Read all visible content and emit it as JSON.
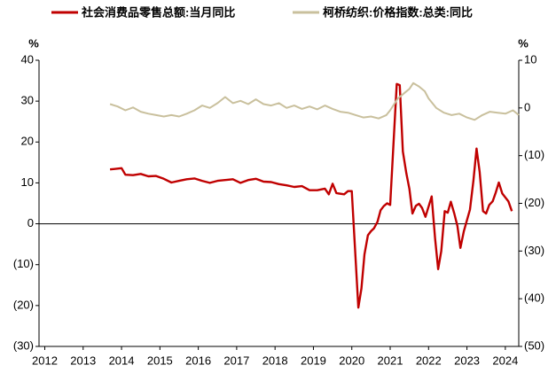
{
  "chart_data": {
    "type": "line",
    "y_label": "%",
    "y2_label": "%",
    "xlim": [
      2011.85,
      2024.35
    ],
    "xticks": [
      2012,
      2013,
      2014,
      2015,
      2016,
      2017,
      2018,
      2019,
      2020,
      2021,
      2022,
      2023,
      2024
    ],
    "ylim": [
      -30,
      40
    ],
    "yticks": [
      40,
      30,
      20,
      10,
      0,
      {
        "value": -10,
        "label": "(10)"
      },
      {
        "value": -20,
        "label": "(20)"
      },
      {
        "value": -30,
        "label": "(30)"
      }
    ],
    "y2lim": [
      -50,
      10
    ],
    "y2ticks": [
      10,
      0,
      {
        "value": -10,
        "label": "(10)"
      },
      {
        "value": -20,
        "label": "(20)"
      },
      {
        "value": -30,
        "label": "(30)"
      },
      {
        "value": -40,
        "label": "(40)"
      },
      {
        "value": -50,
        "label": "(50)"
      }
    ],
    "grid": false,
    "legend": "top",
    "series": [
      {
        "name": "社会消费品零售总额:当月同比",
        "color": "#c00000",
        "axis": "y",
        "x": [
          2013.7,
          2013.9,
          2014.0,
          2014.1,
          2014.3,
          2014.5,
          2014.7,
          2014.9,
          2015.1,
          2015.3,
          2015.5,
          2015.7,
          2015.9,
          2016.1,
          2016.3,
          2016.5,
          2016.7,
          2016.9,
          2017.1,
          2017.3,
          2017.5,
          2017.7,
          2017.9,
          2018.1,
          2018.3,
          2018.5,
          2018.7,
          2018.9,
          2019.1,
          2019.3,
          2019.4,
          2019.5,
          2019.6,
          2019.8,
          2019.9,
          2020.0,
          2020.17,
          2020.25,
          2020.33,
          2020.42,
          2020.5,
          2020.58,
          2020.67,
          2020.75,
          2020.83,
          2020.92,
          2021.0,
          2021.17,
          2021.25,
          2021.33,
          2021.42,
          2021.5,
          2021.58,
          2021.67,
          2021.75,
          2021.83,
          2021.92,
          2022.08,
          2022.17,
          2022.25,
          2022.33,
          2022.42,
          2022.5,
          2022.58,
          2022.67,
          2022.75,
          2022.83,
          2022.92,
          2023.08,
          2023.17,
          2023.25,
          2023.33,
          2023.42,
          2023.5,
          2023.58,
          2023.67,
          2023.75,
          2023.83,
          2023.92,
          2024.08,
          2024.17
        ],
        "values": [
          13.3,
          13.5,
          13.6,
          12.0,
          11.9,
          12.2,
          11.6,
          11.7,
          11.0,
          10.1,
          10.5,
          10.9,
          11.1,
          10.5,
          10.0,
          10.5,
          10.7,
          10.9,
          10.0,
          10.7,
          11.0,
          10.3,
          10.2,
          9.7,
          9.4,
          9.0,
          9.2,
          8.2,
          8.2,
          8.6,
          7.2,
          9.8,
          7.5,
          7.2,
          8.0,
          8.0,
          -20.5,
          -15.8,
          -7.5,
          -2.8,
          -1.8,
          -1.1,
          0.5,
          3.3,
          4.3,
          5.0,
          4.6,
          34.2,
          33.9,
          17.7,
          12.4,
          8.5,
          2.5,
          4.4,
          4.9,
          3.9,
          1.7,
          6.7,
          -3.5,
          -11.1,
          -6.7,
          3.1,
          2.7,
          5.4,
          2.5,
          -0.5,
          -5.9,
          -1.8,
          3.5,
          10.6,
          18.4,
          12.7,
          3.1,
          2.5,
          4.6,
          5.5,
          7.6,
          10.1,
          7.4,
          5.5,
          3.1
        ]
      },
      {
        "name": "柯桥纺织:价格指数:总类:同比",
        "color": "#c9c09d",
        "axis": "y2",
        "x": [
          2013.7,
          2013.9,
          2014.1,
          2014.3,
          2014.5,
          2014.7,
          2014.9,
          2015.1,
          2015.3,
          2015.5,
          2015.7,
          2015.9,
          2016.1,
          2016.3,
          2016.5,
          2016.7,
          2016.9,
          2017.1,
          2017.3,
          2017.5,
          2017.7,
          2017.9,
          2018.1,
          2018.3,
          2018.5,
          2018.7,
          2018.9,
          2019.1,
          2019.3,
          2019.5,
          2019.7,
          2019.9,
          2020.1,
          2020.3,
          2020.5,
          2020.7,
          2020.9,
          2021.0,
          2021.2,
          2021.35,
          2021.5,
          2021.6,
          2021.75,
          2021.9,
          2022.0,
          2022.2,
          2022.4,
          2022.6,
          2022.8,
          2023.0,
          2023.2,
          2023.4,
          2023.6,
          2023.8,
          2024.0,
          2024.2,
          2024.35
        ],
        "values": [
          0.8,
          0.3,
          -0.5,
          0.1,
          -0.8,
          -1.2,
          -1.5,
          -1.8,
          -1.5,
          -1.8,
          -1.2,
          -0.5,
          0.5,
          0.0,
          1.0,
          2.3,
          1.0,
          1.5,
          0.8,
          1.8,
          0.8,
          0.5,
          1.0,
          0.0,
          0.5,
          -0.2,
          0.3,
          -0.3,
          0.5,
          -0.2,
          -0.8,
          -1.0,
          -1.5,
          -2.0,
          -1.8,
          -2.2,
          -1.5,
          -0.5,
          2.0,
          3.0,
          4.0,
          5.2,
          4.5,
          3.5,
          2.0,
          0.0,
          -1.0,
          -1.5,
          -1.2,
          -2.0,
          -2.5,
          -1.5,
          -0.8,
          -1.0,
          -1.2,
          -0.5,
          -1.5
        ]
      }
    ]
  }
}
